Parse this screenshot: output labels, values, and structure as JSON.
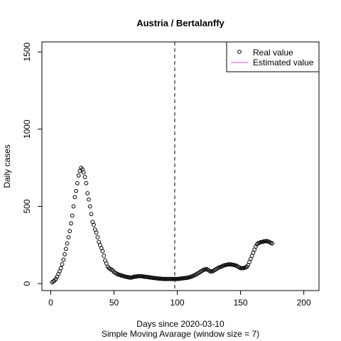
{
  "chart_data": {
    "type": "scatter",
    "title": "Austria / Bertalanffy",
    "xlabel": "Days since 2020-03-10",
    "sublabel": "Simple Moving Avarage (window size = 7)",
    "ylabel": "Daily cases",
    "xlim": [
      -7,
      212
    ],
    "ylim": [
      -45,
      1565
    ],
    "xticks": [
      "0",
      "50",
      "100",
      "150",
      "200"
    ],
    "xtick_values": [
      0,
      50,
      100,
      150,
      200
    ],
    "yticks": [
      "0",
      "500",
      "1000",
      "1500"
    ],
    "ytick_values": [
      0,
      500,
      1000,
      1500
    ],
    "vline_x": 98,
    "legend": {
      "position": "top-right",
      "entries": [
        {
          "label": "Real value",
          "symbol": "open-circle",
          "color": "#000000"
        },
        {
          "label": "Estimated value",
          "symbol": "line",
          "color": "#B565B5"
        }
      ]
    },
    "series": [
      {
        "name": "Real value",
        "x": [
          1,
          2,
          3,
          4,
          5,
          6,
          7,
          8,
          9,
          10,
          11,
          12,
          13,
          14,
          15,
          16,
          17,
          18,
          19,
          20,
          21,
          22,
          23,
          24,
          25,
          26,
          27,
          28,
          29,
          30,
          31,
          32,
          33,
          34,
          35,
          36,
          37,
          38,
          39,
          40,
          41,
          42,
          43,
          44,
          45,
          46,
          47,
          48,
          49,
          50,
          51,
          52,
          53,
          54,
          55,
          56,
          57,
          58,
          59,
          60,
          61,
          62,
          63,
          64,
          65,
          66,
          67,
          68,
          69,
          70,
          71,
          72,
          73,
          74,
          75,
          76,
          77,
          78,
          79,
          80,
          81,
          82,
          83,
          84,
          85,
          86,
          87,
          88,
          89,
          90,
          91,
          92,
          93,
          94,
          95,
          96,
          97,
          98,
          99,
          100,
          101,
          102,
          103,
          104,
          105,
          106,
          107,
          108,
          109,
          110,
          111,
          112,
          113,
          114,
          115,
          116,
          117,
          118,
          119,
          120,
          121,
          122,
          123,
          124,
          125,
          126,
          127,
          128,
          129,
          130,
          131,
          132,
          133,
          134,
          135,
          136,
          137,
          138,
          139,
          140,
          141,
          142,
          143,
          144,
          145,
          146,
          147,
          148,
          149,
          150,
          151,
          152,
          153,
          154,
          155,
          156,
          157,
          158,
          159,
          160,
          161,
          162,
          163,
          164,
          165,
          166,
          167,
          168,
          169,
          170,
          171,
          172,
          173,
          174,
          175
        ],
        "y": [
          8,
          14,
          20,
          30,
          45,
          62,
          80,
          100,
          125,
          155,
          190,
          225,
          260,
          300,
          340,
          390,
          440,
          500,
          560,
          600,
          650,
          700,
          730,
          750,
          740,
          720,
          690,
          650,
          585,
          545,
          500,
          450,
          400,
          380,
          350,
          330,
          300,
          270,
          250,
          230,
          210,
          180,
          150,
          130,
          110,
          100,
          95,
          90,
          85,
          75,
          70,
          65,
          60,
          58,
          55,
          52,
          50,
          48,
          45,
          43,
          42,
          40,
          38,
          40,
          42,
          45,
          45,
          47,
          48,
          48,
          48,
          48,
          46,
          45,
          44,
          43,
          42,
          40,
          40,
          38,
          37,
          36,
          35,
          34,
          33,
          32,
          32,
          31,
          30,
          30,
          30,
          30,
          30,
          30,
          30,
          30,
          30,
          30,
          30,
          30,
          31,
          32,
          33,
          34,
          35,
          36,
          37,
          38,
          40,
          42,
          45,
          48,
          52,
          56,
          60,
          65,
          70,
          75,
          80,
          85,
          90,
          92,
          95,
          90,
          85,
          80,
          78,
          80,
          85,
          90,
          95,
          100,
          105,
          108,
          110,
          115,
          118,
          120,
          122,
          124,
          125,
          125,
          123,
          122,
          120,
          118,
          115,
          110,
          105,
          100,
          100,
          100,
          102,
          105,
          110,
          120,
          140,
          160,
          180,
          200,
          220,
          240,
          255,
          262,
          265,
          268,
          270,
          272,
          274,
          275,
          275,
          272,
          268,
          264,
          260
        ]
      },
      {
        "name": "Estimated value",
        "x": [],
        "y": []
      }
    ]
  }
}
